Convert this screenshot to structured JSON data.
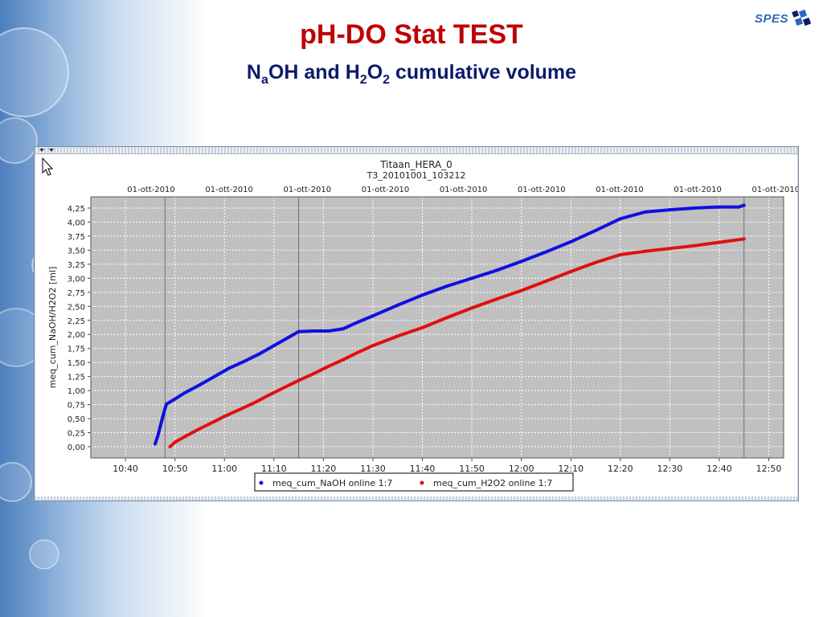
{
  "slide": {
    "title": "pH-DO Stat TEST",
    "subtitle": {
      "p1": "N",
      "sub1": "a",
      "p2": "OH and H",
      "sub2": "2",
      "p3": "O",
      "sub3": "2",
      "p4": " cumulative volume"
    },
    "logo_text": "SPES",
    "title_color": "#c00000",
    "subtitle_color": "#0d1a6b"
  },
  "chart_data": {
    "type": "line",
    "title": "Titaan_HERA_0",
    "subtitle": "T3_20101001_103212",
    "xlabel": "",
    "ylabel": "meq_cum_NaOH/H2O2 [ml]",
    "top_date_labels": [
      "01-ott-2010",
      "01-ott-2010",
      "01-ott-2010",
      "01-ott-2010",
      "01-ott-2010",
      "01-ott-2010",
      "01-ott-2010",
      "01-ott-2010",
      "01-ott-2010"
    ],
    "x_ticks": [
      "10:40",
      "10:50",
      "11:00",
      "11:10",
      "11:20",
      "11:30",
      "11:40",
      "11:50",
      "12:00",
      "12:10",
      "12:20",
      "12:30",
      "12:40",
      "12:50"
    ],
    "y_ticks": [
      "0,00",
      "0,25",
      "0,50",
      "0,75",
      "1,00",
      "1,25",
      "1,50",
      "1,75",
      "2,00",
      "2,25",
      "2,50",
      "2,75",
      "3,00",
      "3,25",
      "3,50",
      "3,75",
      "4,00",
      "4,25"
    ],
    "xlim": [
      "10:33",
      "12:53"
    ],
    "ylim": [
      -0.2,
      4.45
    ],
    "grid": true,
    "plot_background": "#c0c0c0",
    "vertical_markers": [
      "10:48",
      "11:15",
      "12:45"
    ],
    "legend_position": "bottom-center",
    "series": [
      {
        "name": "meq_cum_NaOH online 1:7",
        "color": "#1010e0",
        "points": [
          [
            "10:46",
            0.05
          ],
          [
            "10:46.5",
            0.18
          ],
          [
            "10:47",
            0.35
          ],
          [
            "10:47.5",
            0.52
          ],
          [
            "10:48",
            0.68
          ],
          [
            "10:48.3",
            0.76
          ],
          [
            "10:50",
            0.85
          ],
          [
            "10:52",
            0.96
          ],
          [
            "10:55",
            1.1
          ],
          [
            "10:58",
            1.25
          ],
          [
            "11:01",
            1.4
          ],
          [
            "11:04",
            1.52
          ],
          [
            "11:07",
            1.65
          ],
          [
            "11:10",
            1.8
          ],
          [
            "11:13",
            1.95
          ],
          [
            "11:15",
            2.05
          ],
          [
            "11:18",
            2.06
          ],
          [
            "11:21",
            2.06
          ],
          [
            "11:24",
            2.1
          ],
          [
            "11:27",
            2.22
          ],
          [
            "11:30",
            2.33
          ],
          [
            "11:35",
            2.52
          ],
          [
            "11:40",
            2.7
          ],
          [
            "11:45",
            2.86
          ],
          [
            "11:50",
            3.0
          ],
          [
            "11:55",
            3.14
          ],
          [
            "12:00",
            3.3
          ],
          [
            "12:05",
            3.47
          ],
          [
            "12:10",
            3.65
          ],
          [
            "12:15",
            3.85
          ],
          [
            "12:20",
            4.06
          ],
          [
            "12:25",
            4.18
          ],
          [
            "12:30",
            4.22
          ],
          [
            "12:35",
            4.25
          ],
          [
            "12:40",
            4.27
          ],
          [
            "12:44",
            4.27
          ],
          [
            "12:45",
            4.3
          ]
        ]
      },
      {
        "name": "meq_cum_H2O2 online 1:7",
        "color": "#e01010",
        "points": [
          [
            "10:49",
            0.0
          ],
          [
            "10:50",
            0.08
          ],
          [
            "10:52",
            0.18
          ],
          [
            "10:55",
            0.32
          ],
          [
            "10:58",
            0.45
          ],
          [
            "11:00",
            0.54
          ],
          [
            "11:03",
            0.66
          ],
          [
            "11:06",
            0.78
          ],
          [
            "11:09",
            0.92
          ],
          [
            "11:12",
            1.05
          ],
          [
            "11:15",
            1.18
          ],
          [
            "11:18",
            1.3
          ],
          [
            "11:21",
            1.43
          ],
          [
            "11:24",
            1.55
          ],
          [
            "11:27",
            1.68
          ],
          [
            "11:30",
            1.8
          ],
          [
            "11:35",
            1.97
          ],
          [
            "11:40",
            2.12
          ],
          [
            "11:45",
            2.3
          ],
          [
            "11:50",
            2.47
          ],
          [
            "11:55",
            2.63
          ],
          [
            "12:00",
            2.78
          ],
          [
            "12:05",
            2.95
          ],
          [
            "12:10",
            3.12
          ],
          [
            "12:15",
            3.28
          ],
          [
            "12:20",
            3.42
          ],
          [
            "12:25",
            3.48
          ],
          [
            "12:30",
            3.53
          ],
          [
            "12:35",
            3.58
          ],
          [
            "12:40",
            3.64
          ],
          [
            "12:45",
            3.7
          ]
        ]
      }
    ]
  }
}
